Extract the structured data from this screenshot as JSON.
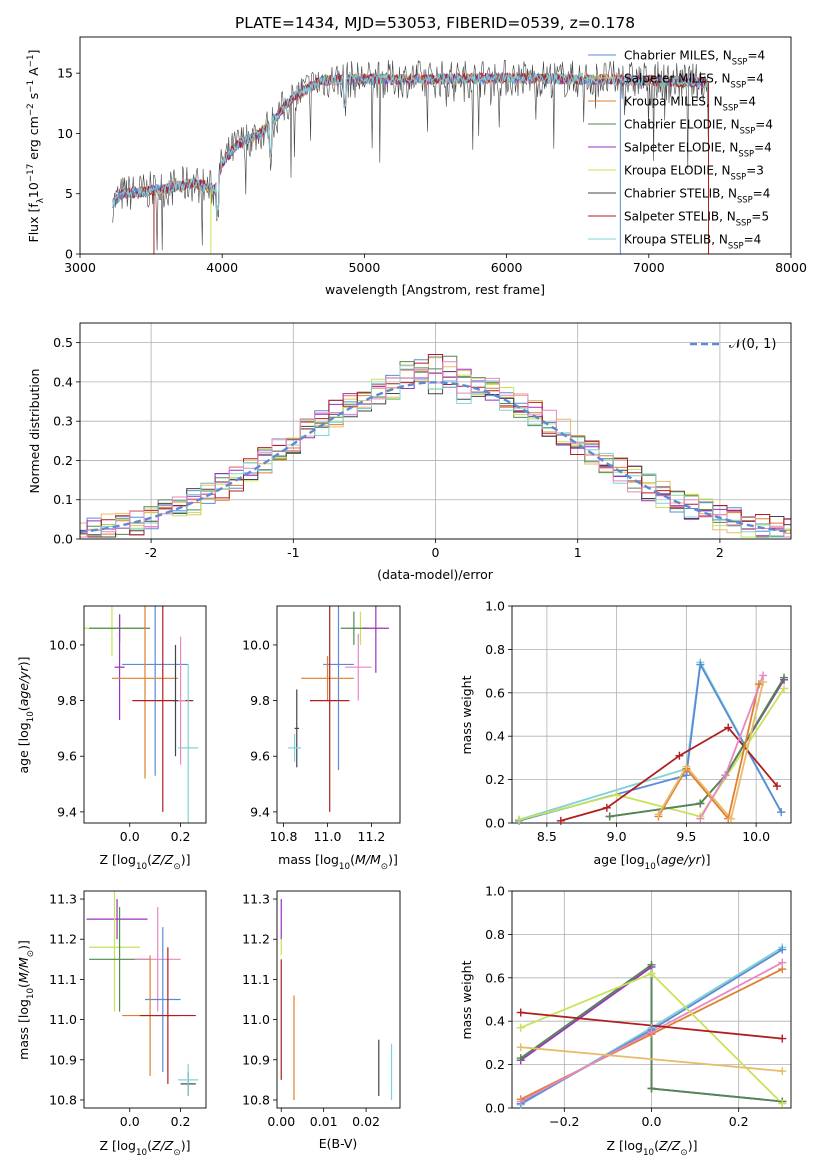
{
  "figure": {
    "title": "PLATE=1434, MJD=53053, FIBERID=0539, z=0.178"
  },
  "colors": {
    "Chabrier MILES": "#5b8bd6",
    "Salpeter MILES": "#e8bb6a",
    "Kroupa MILES": "#e07f2d",
    "Chabrier ELODIE": "#4f8a4f",
    "Salpeter ELODIE": "#9b2fbf",
    "Kroupa ELODIE": "#c8e25a",
    "Chabrier STELIB": "#444444",
    "Salpeter STELIB": "#b01f1f",
    "Kroupa STELIB": "#7fd3d6",
    "pink": "#e887c4",
    "gaussian": "#5b8bd6"
  },
  "chart_data": [
    {
      "id": "spectrum",
      "type": "line",
      "xlabel": "wavelength [Angstrom, rest frame]",
      "ylabel": "Flux [f_λ10^-17 erg cm^-2 s^-1 A^-1]",
      "xlim": [
        3000,
        8000
      ],
      "ylim": [
        0,
        18
      ],
      "xticks": [
        3000,
        4000,
        5000,
        6000,
        7000,
        8000
      ],
      "yticks": [
        0,
        5,
        10,
        15
      ],
      "legend_position": "right",
      "series": [
        {
          "name": "Chabrier MILES",
          "nssp": "4"
        },
        {
          "name": "Salpeter MILES",
          "nssp": "4"
        },
        {
          "name": "Kroupa MILES",
          "nssp": "4"
        },
        {
          "name": "Chabrier ELODIE",
          "nssp": "4"
        },
        {
          "name": "Salpeter ELODIE",
          "nssp": "4"
        },
        {
          "name": "Kroupa ELODIE",
          "nssp": "3"
        },
        {
          "name": "Chabrier STELIB",
          "nssp": "4"
        },
        {
          "name": "Salpeter STELIB",
          "nssp": "5"
        },
        {
          "name": "Kroupa STELIB",
          "nssp": "4"
        }
      ],
      "spectrum_envelope": {
        "x": [
          3230,
          3300,
          3450,
          3600,
          3800,
          3950,
          4000,
          4100,
          4300,
          4500,
          4700,
          5000,
          5500,
          6000,
          6500,
          7000,
          7400
        ],
        "y": [
          4.2,
          5.0,
          5.2,
          5.4,
          5.9,
          5.3,
          7.6,
          9.0,
          10.3,
          13.0,
          14.4,
          14.5,
          14.5,
          14.6,
          14.5,
          14.4,
          14.2
        ]
      },
      "cutoffs": [
        {
          "series": "Salpeter STELIB",
          "x": 3520
        },
        {
          "series": "Kroupa ELODIE",
          "x": 3920
        },
        {
          "series": "Chabrier MILES",
          "x": 6800
        },
        {
          "series": "Salpeter STELIB",
          "x": 7420
        }
      ]
    },
    {
      "id": "residuals",
      "type": "step",
      "xlabel": "(data-model)/error",
      "ylabel": "Normed distribution",
      "xlim": [
        -2.5,
        2.5
      ],
      "ylim": [
        0,
        0.55
      ],
      "xticks": [
        -2,
        -1,
        0,
        1,
        2
      ],
      "yticks": [
        0.0,
        0.1,
        0.2,
        0.3,
        0.4,
        0.5
      ],
      "gaussian_label": "N(0,1)",
      "legend_position": "upper right"
    },
    {
      "id": "age_vs_Z",
      "type": "errorbar",
      "xlabel": "Z [log10(Z/Z_sun)]",
      "ylabel": "age  [log10(age/yr)]",
      "xlim": [
        -0.18,
        0.3
      ],
      "ylim": [
        9.36,
        10.14
      ],
      "xticks": [
        0.0,
        0.2
      ],
      "yticks": [
        9.4,
        9.6,
        9.8,
        10.0
      ],
      "points": [
        {
          "series": "Kroupa ELODIE",
          "x": -0.07,
          "y": 10.06,
          "xerr": 0.12,
          "yerr": 0.1
        },
        {
          "series": "Chabrier ELODIE",
          "x": -0.04,
          "y": 10.06,
          "xerr": 0.12,
          "yerr": 0.05
        },
        {
          "series": "Salpeter ELODIE",
          "x": -0.04,
          "y": 9.92,
          "xerr": 0.02,
          "yerr": 0.19
        },
        {
          "series": "Chabrier MILES",
          "x": 0.1,
          "y": 9.93,
          "xerr": 0.13,
          "yerr": 0.4
        },
        {
          "series": "Kroupa MILES",
          "x": 0.06,
          "y": 9.88,
          "xerr": 0.13,
          "yerr": 0.36
        },
        {
          "series": "Salpeter STELIB",
          "x": 0.13,
          "y": 9.8,
          "xerr": 0.12,
          "yerr": 0.4
        },
        {
          "series": "pink",
          "x": 0.2,
          "y": 9.8,
          "xerr": 0.02,
          "yerr": 0.23
        },
        {
          "series": "Kroupa STELIB",
          "x": 0.23,
          "y": 9.63,
          "xerr": 0.04,
          "yerr": 0.3
        },
        {
          "series": "Chabrier STELIB",
          "x": 0.18,
          "y": 9.8,
          "xerr": 0.01,
          "yerr": 0.2
        }
      ]
    },
    {
      "id": "age_vs_mass",
      "type": "errorbar",
      "xlabel": "mass [log10(M/M_sun)]",
      "ylabel": "",
      "xlim": [
        10.77,
        11.33
      ],
      "ylim": [
        9.36,
        10.14
      ],
      "xticks": [
        10.8,
        11.0,
        11.2
      ],
      "yticks": [
        9.4,
        9.6,
        9.8,
        10.0
      ],
      "points": [
        {
          "series": "Kroupa ELODIE",
          "x": 11.15,
          "y": 10.06,
          "xerr": 0.05,
          "yerr": 0.06
        },
        {
          "series": "Chabrier ELODIE",
          "x": 11.12,
          "y": 10.06,
          "xerr": 0.06,
          "yerr": 0.06
        },
        {
          "series": "Salpeter ELODIE",
          "x": 11.22,
          "y": 10.06,
          "xerr": 0.06,
          "yerr": 0.16
        },
        {
          "series": "Chabrier MILES",
          "x": 11.05,
          "y": 9.93,
          "xerr": 0.07,
          "yerr": 0.38
        },
        {
          "series": "pink",
          "x": 11.14,
          "y": 9.92,
          "xerr": 0.06,
          "yerr": 0.12
        },
        {
          "series": "Kroupa MILES",
          "x": 11.0,
          "y": 9.88,
          "xerr": 0.12,
          "yerr": 0.08
        },
        {
          "series": "Salpeter STELIB",
          "x": 11.01,
          "y": 9.8,
          "xerr": 0.09,
          "yerr": 0.4
        },
        {
          "series": "Chabrier STELIB",
          "x": 10.86,
          "y": 9.7,
          "xerr": 0.01,
          "yerr": 0.14
        },
        {
          "series": "Kroupa STELIB",
          "x": 10.85,
          "y": 9.63,
          "xerr": 0.03,
          "yerr": 0.05
        }
      ]
    },
    {
      "id": "weight_vs_age",
      "type": "line",
      "xlabel": "age  [log10(age/yr)]",
      "ylabel": "mass weight",
      "xlim": [
        8.25,
        10.25
      ],
      "ylim": [
        0,
        1.0
      ],
      "xticks": [
        8.5,
        9.0,
        9.5,
        10.0
      ],
      "yticks": [
        0.0,
        0.2,
        0.4,
        0.6,
        0.8,
        1.0
      ],
      "series": [
        {
          "name": "Kroupa STELIB",
          "x": [
            8.3,
            9.5,
            9.6,
            10.18
          ],
          "y": [
            0.015,
            0.25,
            0.74,
            0.05
          ]
        },
        {
          "name": "Chabrier MILES",
          "x": [
            8.3,
            9.5,
            9.6,
            10.18
          ],
          "y": [
            0.01,
            0.22,
            0.73,
            0.05
          ]
        },
        {
          "name": "Kroupa ELODIE",
          "x": [
            8.3,
            9.0,
            9.6,
            10.2
          ],
          "y": [
            0.015,
            0.13,
            0.03,
            0.62
          ]
        },
        {
          "name": "Salpeter STELIB",
          "x": [
            8.6,
            8.93,
            9.45,
            9.8,
            10.15
          ],
          "y": [
            0.01,
            0.07,
            0.31,
            0.44,
            0.17
          ]
        },
        {
          "name": "Salpeter ELODIE",
          "x": [
            8.95,
            9.6,
            9.78,
            10.2
          ],
          "y": [
            0.03,
            0.09,
            0.22,
            0.66
          ]
        },
        {
          "name": "Chabrier ELODIE",
          "x": [
            8.95,
            9.6,
            9.78,
            10.2
          ],
          "y": [
            0.03,
            0.09,
            0.22,
            0.67
          ]
        },
        {
          "name": "Kroupa MILES",
          "x": [
            9.3,
            9.5,
            9.8,
            10.02
          ],
          "y": [
            0.03,
            0.25,
            0.02,
            0.64
          ]
        },
        {
          "name": "Salpeter MILES",
          "x": [
            9.3,
            9.5,
            9.82,
            10.05
          ],
          "y": [
            0.04,
            0.26,
            0.02,
            0.65
          ]
        },
        {
          "name": "pink",
          "x": [
            9.6,
            9.78,
            10.05
          ],
          "y": [
            0.02,
            0.22,
            0.68
          ]
        }
      ]
    },
    {
      "id": "mass_vs_Z",
      "type": "errorbar",
      "xlabel": "Z [log10(Z/Z_sun)]",
      "ylabel": "mass [log10(M/M_sun)]",
      "xlim": [
        -0.18,
        0.3
      ],
      "ylim": [
        10.78,
        11.32
      ],
      "xticks": [
        0.0,
        0.2
      ],
      "yticks": [
        10.8,
        10.9,
        11.0,
        11.1,
        11.2,
        11.3
      ],
      "points": [
        {
          "series": "Salpeter ELODIE",
          "x": -0.05,
          "y": 11.25,
          "xerr": 0.12,
          "yerr": 0.05
        },
        {
          "series": "Kroupa ELODIE",
          "x": -0.06,
          "y": 11.18,
          "xerr": 0.1,
          "yerr": 0.16
        },
        {
          "series": "Chabrier ELODIE",
          "x": -0.04,
          "y": 11.15,
          "xerr": 0.12,
          "yerr": 0.13
        },
        {
          "series": "pink",
          "x": 0.11,
          "y": 11.15,
          "xerr": 0.09,
          "yerr": 0.13
        },
        {
          "series": "Chabrier MILES",
          "x": 0.13,
          "y": 11.05,
          "xerr": 0.07,
          "yerr": 0.18
        },
        {
          "series": "Kroupa MILES",
          "x": 0.08,
          "y": 11.01,
          "xerr": 0.11,
          "yerr": 0.15
        },
        {
          "series": "Salpeter STELIB",
          "x": 0.15,
          "y": 11.01,
          "xerr": 0.11,
          "yerr": 0.17
        },
        {
          "series": "Chabrier STELIB",
          "x": 0.23,
          "y": 10.84,
          "xerr": 0.03,
          "yerr": 0.03
        },
        {
          "series": "Kroupa STELIB",
          "x": 0.23,
          "y": 10.85,
          "xerr": 0.04,
          "yerr": 0.04
        }
      ]
    },
    {
      "id": "mass_vs_ebv",
      "type": "errorbar",
      "xlabel": "E(B-V)",
      "ylabel": "",
      "xlim": [
        -0.001,
        0.028
      ],
      "ylim": [
        10.78,
        11.32
      ],
      "xticks": [
        0.0,
        0.01,
        0.02
      ],
      "yticks": [
        10.8,
        10.9,
        11.0,
        11.1,
        11.2,
        11.3
      ],
      "points": [
        {
          "series": "Salpeter ELODIE",
          "x": 0.0,
          "y": 11.25,
          "yerr": 0.05
        },
        {
          "series": "Kroupa ELODIE",
          "x": 0.0,
          "y": 11.18,
          "yerr": 0.02
        },
        {
          "series": "Salpeter STELIB",
          "x": 0.0,
          "y": 11.0,
          "yerr": 0.15
        },
        {
          "series": "Kroupa MILES",
          "x": 0.003,
          "y": 10.93,
          "yerr": 0.13
        },
        {
          "series": "Chabrier STELIB",
          "x": 0.023,
          "y": 10.88,
          "yerr": 0.07
        },
        {
          "series": "Kroupa STELIB",
          "x": 0.026,
          "y": 10.87,
          "yerr": 0.07
        }
      ]
    },
    {
      "id": "weight_vs_Z",
      "type": "line",
      "xlabel": "Z [log10(Z/Z_sun)]",
      "ylabel": "mass weight",
      "xlim": [
        -0.32,
        0.32
      ],
      "ylim": [
        0,
        1.0
      ],
      "xticks": [
        -0.2,
        0.0,
        0.2
      ],
      "yticks": [
        0.0,
        0.2,
        0.4,
        0.6,
        0.8,
        1.0
      ],
      "series": [
        {
          "name": "Kroupa STELIB",
          "x": [
            -0.3,
            0.0,
            0.3
          ],
          "y": [
            0.015,
            0.37,
            0.74
          ]
        },
        {
          "name": "Chabrier MILES",
          "x": [
            -0.3,
            0.0,
            0.3
          ],
          "y": [
            0.02,
            0.36,
            0.73
          ]
        },
        {
          "name": "Kroupa MILES",
          "x": [
            -0.3,
            0.0,
            0.3
          ],
          "y": [
            0.04,
            0.34,
            0.64
          ]
        },
        {
          "name": "pink",
          "x": [
            -0.3,
            0.0,
            0.3
          ],
          "y": [
            0.03,
            0.35,
            0.67
          ]
        },
        {
          "name": "Salpeter ELODIE",
          "x": [
            -0.3,
            0.0,
            0.0,
            0.3
          ],
          "y": [
            0.22,
            0.65,
            0.09,
            0.03
          ]
        },
        {
          "name": "Chabrier ELODIE",
          "x": [
            -0.3,
            0.0,
            0.0,
            0.3
          ],
          "y": [
            0.23,
            0.66,
            0.09,
            0.03
          ]
        },
        {
          "name": "Kroupa ELODIE",
          "x": [
            -0.3,
            0.0,
            0.3
          ],
          "y": [
            0.37,
            0.62,
            0.02
          ]
        },
        {
          "name": "Salpeter STELIB",
          "x": [
            -0.3,
            0.3
          ],
          "y": [
            0.44,
            0.32
          ]
        },
        {
          "name": "Salpeter MILES",
          "x": [
            -0.3,
            0.3
          ],
          "y": [
            0.28,
            0.17
          ]
        }
      ]
    }
  ]
}
